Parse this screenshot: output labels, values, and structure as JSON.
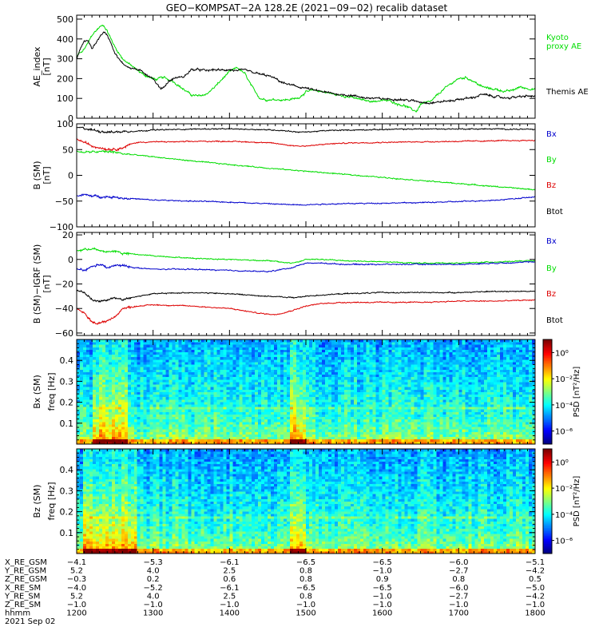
{
  "title": "GEO−KOMPSAT−2A 128.2E (2021−09−02) recalib dataset",
  "colors": {
    "green": "#00dd00",
    "red": "#dd0000",
    "blue": "#0000cc",
    "black": "#000000"
  },
  "chart_data": [
    {
      "type": "line",
      "panel": "ae",
      "ylabel": "AE_index",
      "yunit": "[nT]",
      "ylim": [
        0,
        520
      ],
      "yticks": [
        "0",
        "100",
        "200",
        "300",
        "400",
        "500"
      ],
      "x_range": [
        1200,
        1800
      ],
      "legend": [
        "Kyoto",
        "proxy AE",
        "Themis AE"
      ],
      "series": [
        {
          "name": "Kyoto proxy AE",
          "color": "#00dd00",
          "x": [
            1200,
            1203,
            1206,
            1210,
            1215,
            1220,
            1225,
            1230,
            1235,
            1240,
            1245,
            1250,
            1255,
            1260,
            1270,
            1280,
            1290,
            1300,
            1305,
            1310,
            1315,
            1320,
            1325,
            1330,
            1340,
            1350,
            1360,
            1370,
            1380,
            1390,
            1400,
            1410,
            1420,
            1430,
            1440,
            1450,
            1460,
            1470,
            1480,
            1490,
            1500,
            1510,
            1520,
            1530,
            1540,
            1550,
            1560,
            1570,
            1580,
            1590,
            1600,
            1610,
            1620,
            1630,
            1640,
            1645,
            1650,
            1655,
            1660,
            1665,
            1670,
            1680,
            1690,
            1700,
            1710,
            1720,
            1730,
            1740,
            1750,
            1760,
            1770,
            1780,
            1790,
            1800
          ],
          "y": [
            300,
            330,
            330,
            350,
            380,
            420,
            440,
            460,
            470,
            440,
            400,
            360,
            330,
            300,
            270,
            240,
            215,
            200,
            195,
            205,
            205,
            195,
            190,
            175,
            145,
            118,
            112,
            122,
            155,
            195,
            235,
            255,
            225,
            155,
            100,
            92,
            95,
            92,
            95,
            102,
            132,
            142,
            135,
            128,
            118,
            112,
            105,
            96,
            88,
            85,
            90,
            88,
            72,
            62,
            42,
            35,
            70,
            78,
            80,
            88,
            110,
            145,
            175,
            200,
            205,
            185,
            160,
            150,
            145,
            135,
            140,
            158,
            150,
            145
          ]
        },
        {
          "name": "Themis AE",
          "color": "#000000",
          "x": [
            1200,
            1203,
            1206,
            1210,
            1215,
            1220,
            1225,
            1230,
            1235,
            1240,
            1245,
            1250,
            1255,
            1260,
            1270,
            1280,
            1290,
            1300,
            1305,
            1310,
            1315,
            1320,
            1330,
            1340,
            1350,
            1360,
            1370,
            1380,
            1390,
            1400,
            1410,
            1420,
            1430,
            1440,
            1450,
            1460,
            1470,
            1480,
            1490,
            1500,
            1510,
            1520,
            1530,
            1540,
            1550,
            1560,
            1570,
            1580,
            1590,
            1600,
            1610,
            1620,
            1630,
            1640,
            1650,
            1660,
            1670,
            1680,
            1690,
            1700,
            1710,
            1720,
            1730,
            1740,
            1750,
            1760,
            1770,
            1780,
            1790,
            1800
          ],
          "y": [
            300,
            330,
            360,
            390,
            390,
            350,
            380,
            410,
            435,
            420,
            380,
            330,
            300,
            275,
            255,
            245,
            225,
            200,
            170,
            150,
            160,
            185,
            205,
            208,
            245,
            245,
            240,
            245,
            242,
            245,
            238,
            245,
            232,
            222,
            215,
            200,
            178,
            168,
            158,
            152,
            142,
            135,
            128,
            122,
            118,
            115,
            108,
            102,
            100,
            98,
            96,
            96,
            92,
            88,
            82,
            78,
            80,
            85,
            88,
            95,
            100,
            105,
            120,
            115,
            108,
            102,
            105,
            108,
            112,
            110
          ]
        }
      ]
    },
    {
      "type": "line",
      "panel": "b_sm",
      "ylabel": "B (SM)",
      "yunit": "[nT]",
      "ylim": [
        -100,
        100
      ],
      "yticks": [
        "−100",
        "−50",
        "0",
        "50",
        "100"
      ],
      "x_range": [
        1200,
        1800
      ],
      "legend": [
        "Bx",
        "By",
        "Bz",
        "Btot"
      ],
      "series": [
        {
          "name": "Btot",
          "color": "#000000",
          "x": [
            1200,
            1210,
            1220,
            1230,
            1240,
            1250,
            1260,
            1280,
            1300,
            1330,
            1360,
            1400,
            1440,
            1470,
            1490,
            1500,
            1510,
            1530,
            1560,
            1600,
            1650,
            1700,
            1750,
            1800
          ],
          "y": [
            93,
            91,
            88,
            86,
            84,
            84,
            85,
            86,
            88,
            89,
            90,
            90,
            89,
            87,
            84,
            84,
            85,
            87,
            88,
            89,
            90,
            90,
            90,
            89
          ]
        },
        {
          "name": "Bz",
          "color": "#dd0000",
          "x": [
            1200,
            1210,
            1220,
            1230,
            1240,
            1250,
            1260,
            1270,
            1280,
            1300,
            1330,
            1360,
            1400,
            1440,
            1460,
            1480,
            1490,
            1500,
            1510,
            1530,
            1560,
            1600,
            1650,
            1700,
            1750,
            1800
          ],
          "y": [
            70,
            64,
            57,
            54,
            51,
            51,
            53,
            60,
            64,
            65,
            65,
            66,
            66,
            64,
            62,
            58,
            57,
            57,
            58,
            61,
            63,
            64,
            65,
            66,
            67,
            68
          ]
        },
        {
          "name": "By",
          "color": "#00dd00",
          "x": [
            1200,
            1210,
            1220,
            1230,
            1240,
            1250,
            1260,
            1280,
            1300,
            1350,
            1400,
            1450,
            1500,
            1550,
            1600,
            1650,
            1700,
            1750,
            1800
          ],
          "y": [
            46,
            45,
            45,
            46,
            46,
            45,
            42,
            39,
            36,
            28,
            21,
            14,
            8,
            2,
            -4,
            -10,
            -16,
            -22,
            -28
          ]
        },
        {
          "name": "Bx",
          "color": "#0000cc",
          "x": [
            1200,
            1210,
            1220,
            1230,
            1240,
            1250,
            1260,
            1280,
            1300,
            1350,
            1400,
            1450,
            1480,
            1500,
            1520,
            1550,
            1600,
            1650,
            1700,
            1750,
            1800
          ],
          "y": [
            -40,
            -38,
            -40,
            -41,
            -42,
            -42,
            -44,
            -46,
            -48,
            -50,
            -52,
            -55,
            -57,
            -57,
            -56,
            -55,
            -54,
            -53,
            -51,
            -48,
            -42
          ]
        }
      ]
    },
    {
      "type": "line",
      "panel": "b_sm_igrf",
      "ylabel": "B (SM)−IGRF (SM)",
      "yunit": "[nT]",
      "ylim": [
        -62,
        22
      ],
      "yticks": [
        "−60",
        "−40",
        "−20",
        "0",
        "20"
      ],
      "x_range": [
        1200,
        1800
      ],
      "legend": [
        "Bx",
        "By",
        "Bz",
        "Btot"
      ],
      "series": [
        {
          "name": "Bx",
          "color": "#00dd00",
          "x": [
            1200,
            1210,
            1220,
            1230,
            1240,
            1250,
            1260,
            1280,
            1300,
            1350,
            1400,
            1450,
            1480,
            1490,
            1500,
            1520,
            1550,
            1600,
            1650,
            1700,
            1750,
            1800
          ],
          "y": [
            7,
            8,
            9,
            7,
            6,
            7,
            5,
            4,
            3,
            1,
            0,
            -1,
            -3,
            -2,
            0,
            0,
            -1,
            -2,
            -3,
            -3,
            -2,
            -1
          ]
        },
        {
          "name": "By",
          "color": "#0000cc",
          "x": [
            1200,
            1210,
            1220,
            1230,
            1240,
            1250,
            1260,
            1280,
            1300,
            1350,
            1400,
            1450,
            1480,
            1500,
            1520,
            1550,
            1600,
            1650,
            1700,
            1750,
            1800
          ],
          "y": [
            -8,
            -9,
            -6,
            -4,
            -7,
            -5,
            -5,
            -7,
            -8,
            -8,
            -9,
            -10,
            -7,
            -3,
            -3,
            -4,
            -4,
            -4,
            -4,
            -3,
            -2
          ]
        },
        {
          "name": "Btot",
          "color": "#000000",
          "x": [
            1200,
            1210,
            1220,
            1230,
            1240,
            1250,
            1260,
            1280,
            1300,
            1350,
            1400,
            1450,
            1480,
            1490,
            1500,
            1520,
            1550,
            1600,
            1650,
            1700,
            1750,
            1800
          ],
          "y": [
            -25,
            -27,
            -33,
            -34,
            -33,
            -31,
            -33,
            -30,
            -28,
            -27,
            -28,
            -30,
            -31,
            -31,
            -30,
            -29,
            -28,
            -27,
            -27,
            -27,
            -26,
            -26
          ]
        },
        {
          "name": "Bz",
          "color": "#dd0000",
          "x": [
            1200,
            1210,
            1220,
            1230,
            1240,
            1250,
            1260,
            1280,
            1300,
            1350,
            1400,
            1440,
            1460,
            1480,
            1500,
            1520,
            1550,
            1600,
            1650,
            1700,
            1750,
            1800
          ],
          "y": [
            -40,
            -44,
            -51,
            -52,
            -50,
            -47,
            -40,
            -38,
            -37,
            -38,
            -40,
            -44,
            -45,
            -42,
            -38,
            -36,
            -35,
            -35,
            -35,
            -34,
            -34,
            -33
          ]
        }
      ]
    },
    {
      "type": "heatmap",
      "panel": "bx_psd",
      "ylabel": "Bx (SM)",
      "ylabel2": "freq [Hz]",
      "ylim": [
        0,
        0.5
      ],
      "yticks": [
        "0.1",
        "0.2",
        "0.3",
        "0.4"
      ],
      "x_range": [
        1200,
        1800
      ],
      "colorbar": {
        "label": "PSD [nT²/Hz]",
        "ticks": [
          "10⁰",
          "10⁻²",
          "10⁻⁴",
          "10⁻⁶"
        ],
        "range_log10": [
          -7,
          1
        ]
      },
      "features": {
        "enhanced_time_ranges": [
          [
            1220,
            1265
          ],
          [
            1478,
            1500
          ]
        ],
        "harmonic_line_hz": 0.17
      }
    },
    {
      "type": "heatmap",
      "panel": "bz_psd",
      "ylabel": "Bz (SM)",
      "ylabel2": "freq [Hz]",
      "ylim": [
        0,
        0.5
      ],
      "yticks": [
        "0.1",
        "0.2",
        "0.3",
        "0.4"
      ],
      "x_range": [
        1200,
        1800
      ],
      "colorbar": {
        "label": "PSD [nT²/Hz]",
        "ticks": [
          "10⁰",
          "10⁻²",
          "10⁻⁴",
          "10⁻⁶"
        ],
        "range_log10": [
          -7,
          1
        ]
      },
      "features": {
        "enhanced_time_ranges": [
          [
            1210,
            1280
          ],
          [
            1478,
            1500
          ]
        ],
        "harmonic_line_hz": 0.17
      }
    }
  ],
  "x_axis": {
    "rows": [
      {
        "label": "X_RE_GSM",
        "values": [
          "−4.1",
          "−5.3",
          "−6.1",
          "−6.5",
          "−6.5",
          "−6.0",
          "−5.1"
        ]
      },
      {
        "label": "Y_RE_GSM",
        "values": [
          "5.2",
          "4.0",
          "2.5",
          "0.8",
          "−1.0",
          "−2.7",
          "−4.2"
        ]
      },
      {
        "label": "Z_RE_GSM",
        "values": [
          "−0.3",
          "0.2",
          "0.6",
          "0.8",
          "0.9",
          "0.8",
          "0.5"
        ]
      },
      {
        "label": "X_RE_SM",
        "values": [
          "−4.0",
          "−5.2",
          "−6.1",
          "−6.5",
          "−6.5",
          "−6.0",
          "−5.0"
        ]
      },
      {
        "label": "Y_RE_SM",
        "values": [
          "5.2",
          "4.0",
          "2.5",
          "0.8",
          "−1.0",
          "−2.7",
          "−4.2"
        ]
      },
      {
        "label": "Z_RE_SM",
        "values": [
          "−1.0",
          "−1.0",
          "−1.0",
          "−1.0",
          "−1.0",
          "−1.0",
          "−1.0"
        ]
      },
      {
        "label": "hhmm",
        "values": [
          "1200",
          "1300",
          "1400",
          "1500",
          "1600",
          "1700",
          "1800"
        ]
      }
    ],
    "date": "2021 Sep 02"
  }
}
